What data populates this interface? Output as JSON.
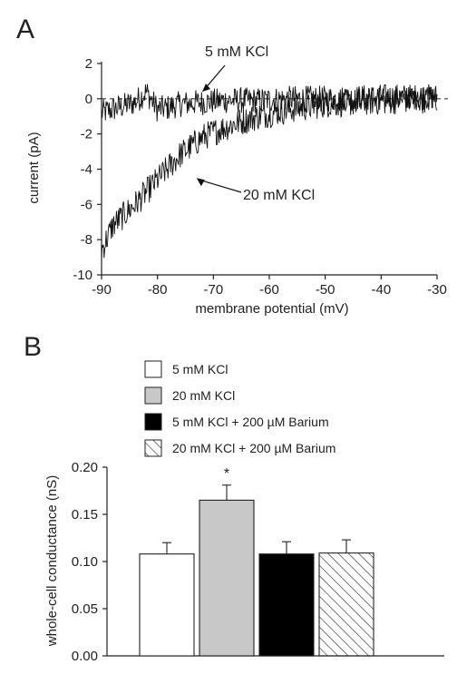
{
  "chart_data": [
    {
      "panel": "A",
      "type": "line",
      "xlabel": "membrane potential (mV)",
      "ylabel": "current (pA)",
      "xlim": [
        -90,
        -30
      ],
      "ylim": [
        -10,
        2
      ],
      "xticks": [
        -90,
        -80,
        -70,
        -60,
        -50,
        -40,
        -30
      ],
      "yticks": [
        2,
        0,
        -2,
        -4,
        -6,
        -8,
        -10
      ],
      "zero_line": "dashed",
      "series": [
        {
          "name": "5 mM KCl",
          "noise": 0.75,
          "points": [
            [
              -90,
              -0.8
            ],
            [
              -88,
              -0.6
            ],
            [
              -86,
              -0.4
            ],
            [
              -84,
              -0.2
            ],
            [
              -82,
              0.4
            ],
            [
              -80,
              -0.6
            ],
            [
              -78,
              -0.5
            ],
            [
              -76,
              -0.3
            ],
            [
              -72,
              -0.2
            ],
            [
              -68,
              -0.1
            ],
            [
              -62,
              -0.1
            ],
            [
              -56,
              0
            ],
            [
              -48,
              0
            ],
            [
              -40,
              0.1
            ],
            [
              -30,
              0.1
            ]
          ]
        },
        {
          "name": "20 mM KCl",
          "noise": 0.8,
          "points": [
            [
              -90,
              -8.6
            ],
            [
              -88,
              -7.2
            ],
            [
              -86,
              -6.6
            ],
            [
              -84,
              -6.0
            ],
            [
              -82,
              -5.3
            ],
            [
              -80,
              -4.6
            ],
            [
              -78,
              -3.9
            ],
            [
              -76,
              -3.2
            ],
            [
              -74,
              -2.7
            ],
            [
              -72,
              -2.2
            ],
            [
              -70,
              -1.9
            ],
            [
              -66,
              -1.4
            ],
            [
              -62,
              -1.0
            ],
            [
              -58,
              -0.7
            ],
            [
              -54,
              -0.5
            ],
            [
              -50,
              -0.3
            ],
            [
              -44,
              -0.2
            ],
            [
              -38,
              -0.1
            ],
            [
              -30,
              0
            ]
          ]
        }
      ],
      "annotations": [
        {
          "text": "5 mM KCl",
          "points_to": [
            -72,
            0.4
          ]
        },
        {
          "text": "20 mM KCl",
          "points_to": [
            -73,
            -4.5
          ]
        }
      ]
    },
    {
      "panel": "B",
      "type": "bar",
      "ylabel": "whole-cell conductance (nS)",
      "ylim": [
        0,
        0.2
      ],
      "yticks": [
        "0.00",
        "0.05",
        "0.10",
        "0.15",
        "0.20"
      ],
      "categories": [
        "5 mM KCl",
        "20 mM KCl",
        "5 mM KCl + 200 µM Barium",
        "20 mM KCl + 200 µM Barium"
      ],
      "values": [
        0.108,
        0.165,
        0.108,
        0.109
      ],
      "errors": [
        0.012,
        0.016,
        0.013,
        0.014
      ],
      "fills": [
        "#ffffff",
        "#c8c8c8",
        "#000000",
        "hatched"
      ],
      "significance": [
        "",
        "*",
        "",
        ""
      ]
    }
  ],
  "labels": {
    "panel_a": "A",
    "panel_b": "B"
  }
}
